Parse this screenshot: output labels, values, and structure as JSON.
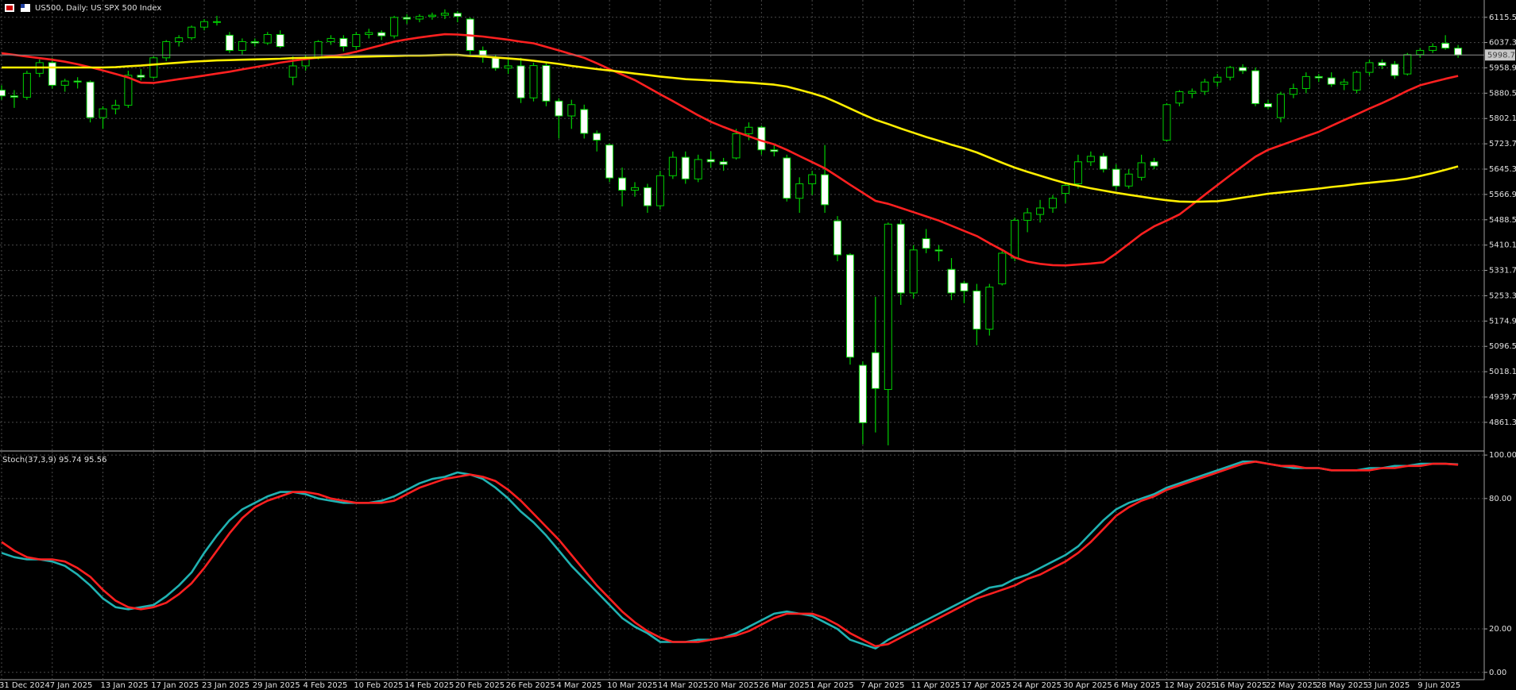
{
  "chart_data": [
    {
      "type": "candlestick",
      "title": "US500, Daily: US SPX 500 Index",
      "categories": [
        "31 Dec 2024",
        null,
        null,
        null,
        "7 Jan 2025",
        null,
        null,
        null,
        "13 Jan 2025",
        null,
        null,
        null,
        "17 Jan 2025",
        null,
        null,
        null,
        "23 Jan 2025",
        null,
        null,
        null,
        "29 Jan 2025",
        null,
        null,
        null,
        "4 Feb 2025",
        null,
        null,
        null,
        "10 Feb 2025",
        null,
        null,
        null,
        "14 Feb 2025",
        null,
        null,
        null,
        "20 Feb 2025",
        null,
        null,
        null,
        "26 Feb 2025",
        null,
        null,
        null,
        "4 Mar 2025",
        null,
        null,
        null,
        "10 Mar 2025",
        null,
        null,
        null,
        "14 Mar 2025",
        null,
        null,
        null,
        "20 Mar 2025",
        null,
        null,
        null,
        "26 Mar 2025",
        null,
        null,
        null,
        "1 Apr 2025",
        null,
        null,
        null,
        "7 Apr 2025",
        null,
        null,
        null,
        "11 Apr 2025",
        null,
        null,
        null,
        "17 Apr 2025",
        null,
        null,
        null,
        "24 Apr 2025",
        null,
        null,
        null,
        "30 Apr 2025",
        null,
        null,
        null,
        "6 May 2025",
        null,
        null,
        null,
        "12 May 2025",
        null,
        null,
        null,
        "16 May 2025",
        null,
        null,
        null,
        "22 May 2025",
        null,
        null,
        null,
        "28 May 2025",
        null,
        null,
        null,
        "3 Jun 2025",
        null,
        null,
        null,
        "9 Jun 2025",
        null,
        null,
        null
      ],
      "open": [
        5890,
        5872,
        5868,
        5942,
        5975,
        5905,
        5918,
        5915,
        5805,
        5832,
        5843,
        5936,
        5930,
        5990,
        6040,
        6052,
        6085,
        6102,
        6060,
        6013,
        6040,
        6036,
        6062,
        5930,
        5965,
        5990,
        6040,
        6050,
        6025,
        6062,
        6068,
        6058,
        6115,
        6110,
        6118,
        6122,
        6128,
        6110,
        6013,
        5990,
        5958,
        5965,
        5866,
        5966,
        5856,
        5810,
        5830,
        5756,
        5720,
        5618,
        5580,
        5588,
        5532,
        5625,
        5682,
        5615,
        5675,
        5668,
        5680,
        5755,
        5775,
        5705,
        5680,
        5555,
        5600,
        5628,
        5485,
        5380,
        5038,
        5077,
        4963,
        5475,
        5262,
        5430,
        5395,
        5335,
        5292,
        5268,
        5150,
        5290,
        5370,
        5487,
        5505,
        5525,
        5570,
        5600,
        5668,
        5685,
        5645,
        5593,
        5620,
        5668,
        5735,
        5850,
        5880,
        5886,
        5915,
        5930,
        5960,
        5950,
        5848,
        5805,
        5877,
        5895,
        5932,
        5928,
        5908,
        5890,
        5945,
        5975,
        5970,
        5940,
        6000,
        6013,
        6035,
        6020
      ],
      "high": [
        5905,
        5890,
        5950,
        5985,
        5990,
        5925,
        5930,
        5920,
        5840,
        5860,
        5950,
        5955,
        5995,
        6045,
        6060,
        6090,
        6110,
        6120,
        6070,
        6050,
        6050,
        6070,
        6075,
        5995,
        6000,
        6045,
        6060,
        6060,
        6070,
        6080,
        6075,
        6120,
        6125,
        6125,
        6130,
        6140,
        6135,
        6115,
        6025,
        6000,
        5985,
        5990,
        5975,
        5975,
        5865,
        5860,
        5845,
        5765,
        5725,
        5650,
        5605,
        5600,
        5640,
        5700,
        5700,
        5690,
        5700,
        5680,
        5770,
        5790,
        5780,
        5725,
        5690,
        5620,
        5640,
        5720,
        5500,
        5385,
        5050,
        5250,
        5480,
        5490,
        5410,
        5460,
        5410,
        5370,
        5300,
        5290,
        5290,
        5395,
        5495,
        5525,
        5550,
        5565,
        5600,
        5690,
        5700,
        5695,
        5660,
        5645,
        5690,
        5680,
        5850,
        5890,
        5895,
        5925,
        5940,
        5965,
        5970,
        5960,
        5860,
        5885,
        5910,
        5945,
        5940,
        5945,
        5925,
        5950,
        5985,
        5985,
        5980,
        6005,
        6020,
        6035,
        6060,
        6030
      ],
      "low": [
        5860,
        5835,
        5860,
        5930,
        5895,
        5885,
        5895,
        5790,
        5770,
        5815,
        5835,
        5920,
        5925,
        5980,
        6025,
        6045,
        6075,
        6090,
        6005,
        6000,
        6025,
        6030,
        6020,
        5905,
        5950,
        5985,
        6030,
        6010,
        6015,
        6050,
        6045,
        6050,
        6095,
        6100,
        6108,
        6110,
        6100,
        6000,
        5975,
        5950,
        5940,
        5850,
        5855,
        5840,
        5740,
        5770,
        5740,
        5700,
        5605,
        5530,
        5560,
        5510,
        5520,
        5615,
        5600,
        5605,
        5650,
        5640,
        5675,
        5735,
        5690,
        5685,
        5545,
        5510,
        5565,
        5510,
        5360,
        5040,
        4793,
        4830,
        4790,
        5225,
        5245,
        5385,
        5360,
        5240,
        5230,
        5100,
        5130,
        5285,
        5360,
        5450,
        5480,
        5510,
        5540,
        5585,
        5655,
        5635,
        5580,
        5585,
        5610,
        5645,
        5730,
        5840,
        5865,
        5875,
        5900,
        5920,
        5940,
        5840,
        5830,
        5790,
        5865,
        5880,
        5915,
        5900,
        5890,
        5880,
        5935,
        5955,
        5925,
        5935,
        5990,
        6005,
        6015,
        5990
      ],
      "close": [
        5872,
        5868,
        5942,
        5975,
        5905,
        5918,
        5915,
        5805,
        5832,
        5843,
        5936,
        5930,
        5990,
        6040,
        6052,
        6085,
        6102,
        6100,
        6013,
        6040,
        6036,
        6062,
        6025,
        5965,
        5990,
        6040,
        6050,
        6025,
        6062,
        6068,
        6058,
        6115,
        6110,
        6118,
        6122,
        6128,
        6118,
        6013,
        5992,
        5958,
        5965,
        5866,
        5966,
        5856,
        5810,
        5845,
        5756,
        5735,
        5618,
        5580,
        5588,
        5532,
        5625,
        5682,
        5615,
        5675,
        5668,
        5660,
        5755,
        5775,
        5705,
        5700,
        5555,
        5600,
        5628,
        5535,
        5380,
        5063,
        4860,
        4966,
        5475,
        5262,
        5395,
        5400,
        5392,
        5262,
        5268,
        5150,
        5280,
        5385,
        5487,
        5510,
        5525,
        5555,
        5595,
        5668,
        5685,
        5645,
        5593,
        5630,
        5665,
        5655,
        5845,
        5885,
        5886,
        5915,
        5930,
        5960,
        5950,
        5848,
        5838,
        5877,
        5895,
        5932,
        5928,
        5908,
        5915,
        5945,
        5975,
        5966,
        5935,
        6000,
        6013,
        6025,
        6020,
        5998.7
      ],
      "up_color": "#000000",
      "down_color": "#ffffff",
      "wick_color": "#00d000",
      "series": [
        {
          "color": "#ff2020",
          "values": [
            6004,
            5999,
            5994,
            5989,
            5984,
            5978,
            5970,
            5961,
            5951,
            5940,
            5929,
            5913,
            5912,
            5918,
            5924,
            5929,
            5935,
            5941,
            5947,
            5954,
            5961,
            5968,
            5975,
            5981,
            5986,
            5991,
            5995,
            6000,
            6009,
            6019,
            6029,
            6040,
            6047,
            6053,
            6058,
            6063,
            6062,
            6059,
            6056,
            6051,
            6046,
            6040,
            6035,
            6024,
            6013,
            6001,
            5990,
            5973,
            5955,
            5938,
            5921,
            5899,
            5877,
            5856,
            5834,
            5812,
            5792,
            5776,
            5761,
            5747,
            5733,
            5722,
            5705,
            5686,
            5667,
            5648,
            5623,
            5597,
            5572,
            5547,
            5538,
            5525,
            5512,
            5499,
            5486,
            5470,
            5454,
            5438,
            5416,
            5395,
            5372,
            5359,
            5352,
            5348,
            5347,
            5350,
            5353,
            5357,
            5384,
            5414,
            5444,
            5468,
            5486,
            5505,
            5535,
            5566,
            5596,
            5626,
            5655,
            5684,
            5705,
            5719,
            5733,
            5747,
            5761,
            5779,
            5797,
            5815,
            5833,
            5850,
            5868,
            5888,
            5905,
            5915,
            5925,
            5934
          ]
        },
        {
          "color": "#ffee00",
          "values": [
            5960,
            5960,
            5960,
            5960,
            5960,
            5960,
            5960,
            5960,
            5960,
            5961,
            5964,
            5966,
            5969,
            5972,
            5975,
            5978,
            5980,
            5982,
            5983,
            5984,
            5985,
            5986,
            5987,
            5989,
            5990,
            5991,
            5992,
            5992,
            5993,
            5994,
            5995,
            5996,
            5997,
            5997,
            5998,
            5999,
            5999,
            5996,
            5994,
            5991,
            5988,
            5985,
            5981,
            5976,
            5971,
            5965,
            5960,
            5955,
            5951,
            5946,
            5941,
            5937,
            5932,
            5928,
            5924,
            5922,
            5920,
            5918,
            5915,
            5913,
            5910,
            5907,
            5901,
            5891,
            5880,
            5868,
            5851,
            5833,
            5815,
            5798,
            5785,
            5771,
            5758,
            5745,
            5733,
            5721,
            5710,
            5697,
            5681,
            5665,
            5650,
            5637,
            5625,
            5613,
            5602,
            5594,
            5586,
            5579,
            5572,
            5566,
            5560,
            5554,
            5549,
            5545,
            5544,
            5545,
            5546,
            5551,
            5557,
            5563,
            5569,
            5573,
            5577,
            5581,
            5585,
            5590,
            5594,
            5599,
            5603,
            5607,
            5611,
            5616,
            5624,
            5633,
            5643,
            5654
          ]
        }
      ],
      "ylim": [
        4775,
        6169
      ],
      "yticks": [
        4861.3,
        4939.7,
        5018.1,
        5096.5,
        5174.9,
        5253.3,
        5331.7,
        5410.1,
        5488.5,
        5566.9,
        5645.3,
        5723.7,
        5802.1,
        5880.5,
        5958.9,
        6037.3,
        6115.5
      ],
      "grid": true
    },
    {
      "type": "line",
      "title": "Stoch(37,3,9) 95.74 95.56",
      "series": [
        {
          "color": "#20b2b2",
          "values": [
            55,
            53,
            52,
            52,
            51,
            49,
            45,
            40,
            34,
            30,
            29,
            30,
            31,
            35,
            40,
            46,
            55,
            63,
            70,
            75,
            78,
            81,
            83,
            83,
            82,
            80,
            79,
            78,
            78,
            78,
            79,
            81,
            84,
            87,
            89,
            90,
            92,
            91,
            89,
            85,
            80,
            74,
            69,
            63,
            56,
            49,
            43,
            37,
            31,
            25,
            21,
            18,
            14,
            14,
            14,
            15,
            15,
            16,
            18,
            21,
            24,
            27,
            28,
            27,
            26,
            23,
            20,
            15,
            13,
            11,
            15,
            18,
            21,
            24,
            27,
            30,
            33,
            36,
            39,
            40,
            43,
            45,
            48,
            51,
            54,
            58,
            64,
            70,
            75,
            78,
            80,
            82,
            85,
            87,
            89,
            91,
            93,
            95,
            97,
            97,
            96,
            95,
            94,
            94,
            94,
            93,
            93,
            93,
            94,
            94,
            95,
            95,
            96,
            96,
            96,
            95.74
          ]
        },
        {
          "color": "#ff2020",
          "values": [
            60,
            56,
            53,
            52,
            52,
            51,
            48,
            44,
            38,
            33,
            30,
            29,
            30,
            32,
            36,
            41,
            48,
            56,
            64,
            71,
            76,
            79,
            81,
            83,
            83,
            82,
            80,
            79,
            78,
            78,
            78,
            79,
            82,
            85,
            87,
            89,
            90,
            91,
            90,
            88,
            84,
            79,
            73,
            67,
            61,
            54,
            47,
            40,
            34,
            28,
            23,
            19,
            16,
            14,
            14,
            14,
            15,
            16,
            17,
            19,
            22,
            25,
            27,
            27,
            27,
            25,
            22,
            18,
            15,
            12,
            13,
            16,
            19,
            22,
            25,
            28,
            31,
            34,
            36,
            38,
            40,
            43,
            45,
            48,
            51,
            55,
            60,
            66,
            72,
            76,
            79,
            81,
            84,
            86,
            88,
            90,
            92,
            94,
            96,
            97,
            96,
            95,
            95,
            94,
            94,
            93,
            93,
            93,
            93,
            94,
            94,
            95,
            95,
            96,
            96,
            95.56
          ]
        }
      ],
      "ylim": [
        -3,
        101.5
      ],
      "yticks": [
        {
          "value": 0,
          "label": "0.00"
        },
        {
          "value": 20,
          "label": "20.00"
        },
        {
          "value": 80,
          "label": "80.00"
        },
        {
          "value": 100,
          "label": "100.00"
        }
      ],
      "grid": true
    }
  ]
}
